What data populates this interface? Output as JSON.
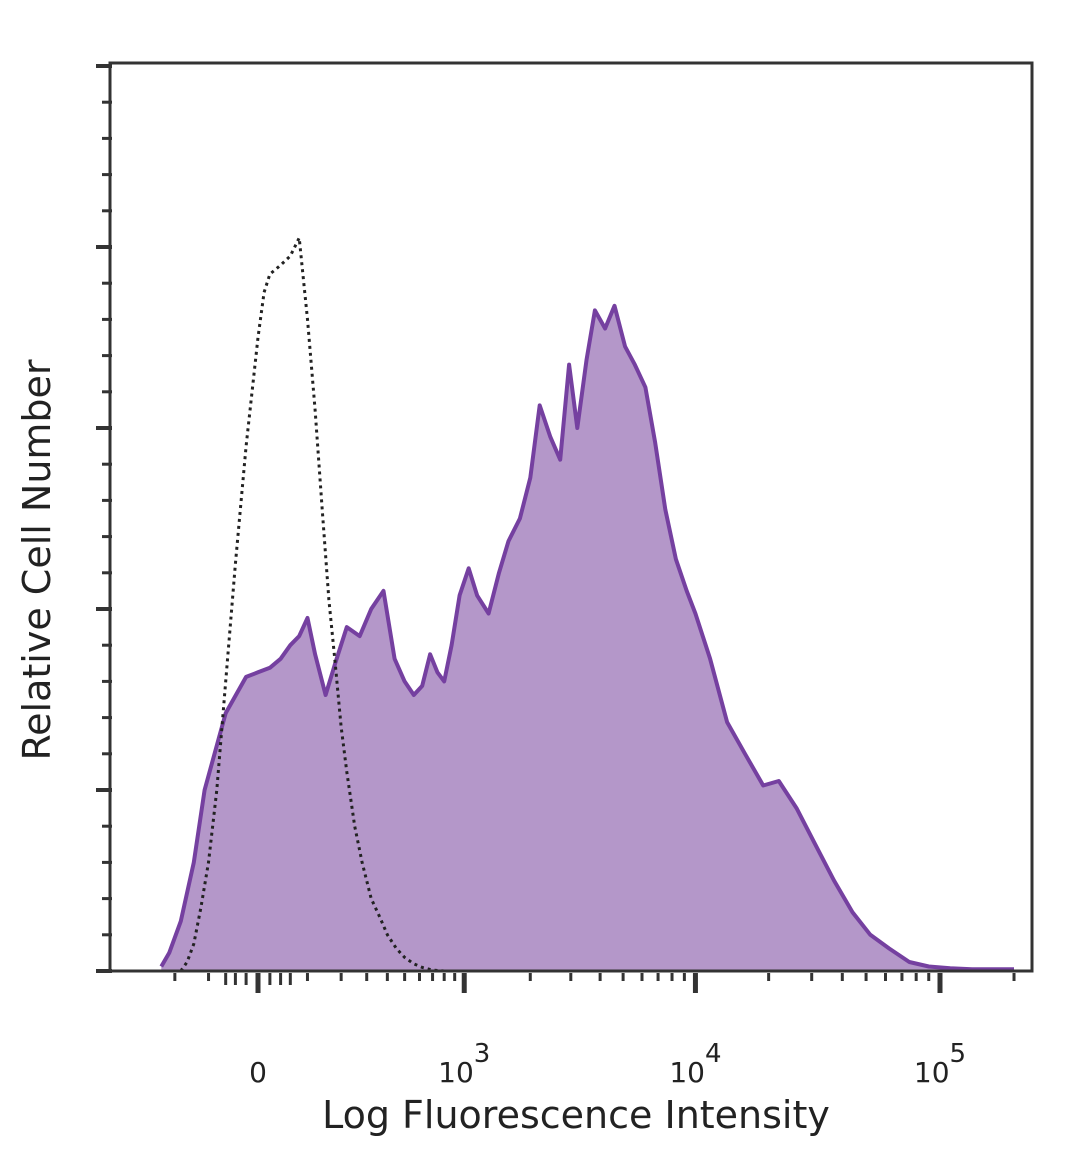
{
  "chart_data": {
    "type": "area",
    "xlabel": "Log Fluorescence Intensity",
    "ylabel": "Relative Cell Number",
    "x_scale": "biexponential",
    "x_ticks": [
      {
        "value": 0,
        "label": "0",
        "base": "",
        "exp": ""
      },
      {
        "value": 1000,
        "label": "10^3",
        "base": "10",
        "exp": "3"
      },
      {
        "value": 10000,
        "label": "10^4",
        "base": "10",
        "exp": "4"
      },
      {
        "value": 100000,
        "label": "10^5",
        "base": "10",
        "exp": "5"
      }
    ],
    "ylim": [
      0,
      100
    ],
    "y_tick_count": 5,
    "grid": false,
    "series": [
      {
        "style": "filled",
        "color": "#7540a0",
        "fill": "#b497c9",
        "x": [
          -250,
          -220,
          -180,
          -140,
          -110,
          -60,
          -20,
          0,
          20,
          40,
          60,
          80,
          100,
          120,
          150,
          180,
          220,
          270,
          320,
          380,
          440,
          500,
          560,
          620,
          680,
          740,
          800,
          870,
          950,
          1050,
          1150,
          1300,
          1450,
          1600,
          1800,
          2000,
          2200,
          2450,
          2700,
          2950,
          3200,
          3500,
          3800,
          4200,
          4600,
          5100,
          5600,
          6200,
          6800,
          7500,
          8300,
          9200,
          10000,
          11500,
          13500,
          16000,
          19000,
          22000,
          26000,
          31000,
          37000,
          44000,
          52000,
          62000,
          75000,
          90000,
          110000,
          135000,
          165000,
          200000
        ],
        "y": [
          0.5,
          2,
          5.5,
          12,
          20,
          28.5,
          32.5,
          33,
          33.5,
          34.5,
          36,
          37,
          39,
          35,
          30.5,
          34,
          38,
          37,
          40,
          42,
          34.5,
          32,
          30.5,
          31.5,
          35,
          33,
          32,
          36,
          41.5,
          44.5,
          41.5,
          39.5,
          44,
          47.5,
          50,
          54.5,
          62.5,
          59,
          56.5,
          67,
          60,
          67.5,
          73,
          71,
          73.5,
          69,
          67,
          64.5,
          58.5,
          51,
          45.5,
          42,
          39.5,
          34.5,
          27.5,
          24,
          20.5,
          21,
          18,
          14,
          10,
          6.5,
          4,
          2.5,
          1,
          0.5,
          0.3,
          0.2,
          0.2,
          0.2
        ]
      },
      {
        "style": "dotted",
        "color": "#222222",
        "x": [
          -180,
          -160,
          -140,
          -120,
          -100,
          -80,
          -60,
          -40,
          -20,
          0,
          10,
          20,
          30,
          40,
          60,
          80,
          100,
          120,
          140,
          160,
          180,
          200,
          220,
          250,
          280,
          320,
          360,
          400,
          450,
          500,
          560,
          620,
          700,
          800
        ],
        "y": [
          0,
          1,
          3,
          7,
          12,
          20,
          32,
          45,
          58,
          70,
          75,
          77,
          77.5,
          78,
          79,
          81,
          72,
          62,
          51,
          41,
          34,
          27,
          22,
          16,
          12,
          8,
          6,
          4,
          2.5,
          1.5,
          0.8,
          0.4,
          0.1,
          0
        ]
      }
    ]
  }
}
